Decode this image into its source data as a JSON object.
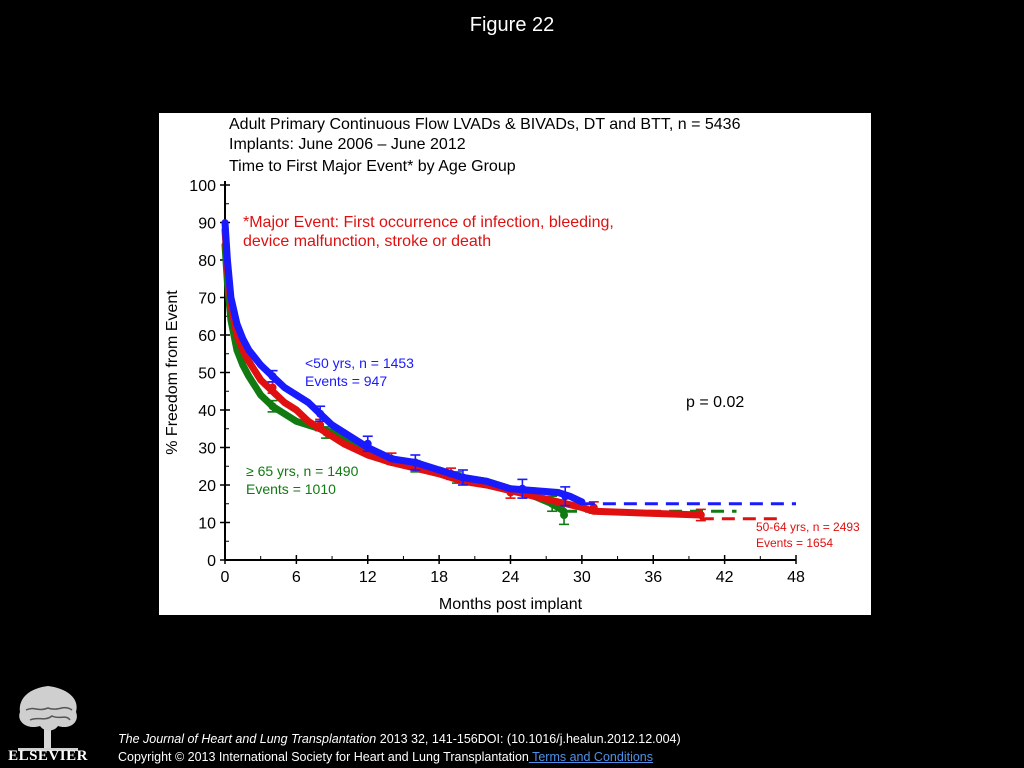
{
  "figure_title": "Figure 22",
  "chart_data": {
    "type": "line",
    "title_lines": [
      "Adult Primary Continuous Flow LVADs & BIVADs, DT and BTT, n = 5436",
      "Implants: June 2006 – June 2012",
      "Time to First Major Event* by Age Group"
    ],
    "footnote_lines": [
      "*Major Event: First occurrence of infection, bleeding,",
      "device malfunction, stroke or death"
    ],
    "xlabel": "Months post implant",
    "ylabel": "% Freedom from Event",
    "xlim": [
      0,
      48
    ],
    "ylim": [
      0,
      100
    ],
    "xticks": [
      0,
      6,
      12,
      18,
      24,
      30,
      36,
      42,
      48
    ],
    "yticks": [
      0,
      10,
      20,
      30,
      40,
      50,
      60,
      70,
      80,
      90,
      100
    ],
    "pvalue": "p = 0.02",
    "series": [
      {
        "color": "#1a1aff",
        "label_lines": [
          "<50 yrs, n = 1453",
          "Events = 947"
        ],
        "x": [
          0,
          0.2,
          0.5,
          1,
          1.5,
          2,
          3,
          4,
          5,
          6,
          7,
          8,
          9,
          10,
          12,
          14,
          16,
          18,
          20,
          22,
          24,
          26,
          28,
          29,
          30
        ],
        "y": [
          90,
          80,
          70,
          63,
          59,
          56,
          52,
          49,
          46,
          44,
          42,
          39,
          36,
          34,
          30,
          27,
          26,
          24,
          22,
          21,
          19,
          18.5,
          18,
          17,
          15.5
        ],
        "error_x": [
          4,
          8,
          12,
          16,
          20,
          25,
          28.6
        ],
        "error_y": [
          49,
          39,
          31,
          26,
          22,
          19,
          17
        ],
        "error_half": [
          1.5,
          2,
          2,
          2,
          2,
          2.5,
          2.5
        ],
        "extension": [
          30,
          48,
          15
        ]
      },
      {
        "color": "#e01010",
        "label_lines": [
          "50-64 yrs, n = 2493",
          "Events = 1654"
        ],
        "x": [
          0,
          0.2,
          0.5,
          1,
          1.5,
          2,
          3,
          4,
          5,
          6,
          7,
          8,
          9,
          10,
          12,
          14,
          16,
          18,
          20,
          22,
          24,
          26,
          28,
          30,
          31,
          40
        ],
        "y": [
          88,
          78,
          68,
          60,
          56,
          53,
          48,
          45,
          42,
          40,
          37,
          35,
          33,
          31,
          28,
          26,
          24.5,
          23,
          21,
          20,
          18.5,
          17,
          15.5,
          14,
          13,
          12
        ],
        "error_x": [
          4,
          8,
          14,
          19,
          24,
          31,
          40
        ],
        "error_y": [
          46,
          36,
          27,
          23,
          18,
          14,
          12
        ],
        "error_half": [
          1.5,
          1.5,
          1.5,
          1.5,
          1.5,
          1.5,
          1.5
        ],
        "extension": [
          40,
          47,
          11
        ]
      },
      {
        "color": "#117a11",
        "label_lines": [
          "≥ 65 yrs,  n = 1490",
          "Events   = 1010"
        ],
        "x": [
          0,
          0.2,
          0.5,
          1,
          1.5,
          2,
          3,
          4,
          5,
          6,
          7,
          8,
          9,
          10,
          12,
          14,
          16,
          18,
          20,
          22,
          24,
          26,
          27.5,
          28.5
        ],
        "y": [
          84,
          74,
          64,
          56,
          52,
          49,
          44,
          41,
          39,
          37,
          36,
          35,
          34,
          32,
          29,
          27,
          25.5,
          24,
          22,
          21,
          19,
          17,
          15,
          13
        ],
        "error_x": [
          4,
          8.5,
          16,
          19.5,
          27.5,
          28.5
        ],
        "error_y": [
          41,
          34,
          25,
          22,
          15,
          12
        ],
        "error_half": [
          1.5,
          1.5,
          1.5,
          1.5,
          2,
          2.5
        ],
        "extension": [
          28.5,
          43,
          13
        ]
      }
    ]
  },
  "footer": {
    "journal": "The Journal of Heart and Lung Transplantation",
    "citation": " 2013 32, 141-156DOI: (10.1016/j.healun.2012.12.004)",
    "copyright": "Copyright © 2013 International Society for Heart and Lung Transplantation",
    "terms_link": " Terms and Conditions"
  },
  "logo": {
    "wordmark": "ELSEVIER",
    "icon": "elsevier-tree-logo"
  }
}
